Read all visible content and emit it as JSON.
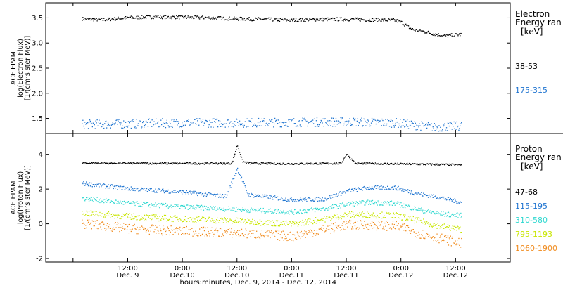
{
  "chart_data": [
    {
      "type": "scatter",
      "panel": "electron",
      "ylabel_lines": [
        "ACE EPAM",
        "log(Electron Flux)",
        "[1/(cm²s ster MeV)]"
      ],
      "legend_title_lines": [
        "Electron",
        "Energy ran"
      ],
      "legend_unit": "[keV]",
      "ylim": [
        1.2,
        3.8
      ],
      "yticks": [
        1.5,
        2.0,
        2.5,
        3.0,
        3.5
      ],
      "ytick_labels": [
        "1.5",
        "2.0",
        "2.5",
        "3.0",
        "3.5"
      ],
      "series": [
        {
          "name": "38-53",
          "color": "#000000",
          "x": [
            0.08,
            0.25,
            0.5,
            0.75,
            1.0,
            1.25,
            1.5,
            1.75,
            2.0,
            2.25,
            2.5,
            2.75,
            2.95,
            3.0,
            3.05,
            3.1,
            3.2,
            3.3,
            3.4,
            3.55
          ],
          "y": [
            3.49,
            3.47,
            3.51,
            3.53,
            3.52,
            3.51,
            3.49,
            3.48,
            3.46,
            3.48,
            3.48,
            3.47,
            3.46,
            3.42,
            3.35,
            3.28,
            3.24,
            3.19,
            3.15,
            3.18
          ],
          "spread": 0.035
        },
        {
          "name": "175-315",
          "color": "#1f74d0",
          "x": [
            0.08,
            0.5,
            1.0,
            1.5,
            2.0,
            2.5,
            2.95,
            3.1,
            3.3,
            3.55
          ],
          "y": [
            1.39,
            1.4,
            1.42,
            1.42,
            1.43,
            1.44,
            1.42,
            1.38,
            1.33,
            1.36
          ],
          "spread": 0.09
        }
      ]
    },
    {
      "type": "scatter",
      "panel": "proton",
      "ylabel_lines": [
        "ACE EPAM",
        "log(Proton Flux)",
        "[1/(cm²s ster MeV)]"
      ],
      "legend_title_lines": [
        "Proton",
        "Energy ran"
      ],
      "legend_unit": "[keV]",
      "ylim": [
        -2.2,
        5.2
      ],
      "yticks": [
        -2,
        0,
        2,
        4
      ],
      "ytick_labels": [
        "-2",
        "0",
        "2",
        "4"
      ],
      "series": [
        {
          "name": "47-68",
          "color": "#000000",
          "x": [
            0.08,
            0.8,
            1.45,
            1.5,
            1.55,
            1.62,
            2.0,
            2.45,
            2.5,
            2.58,
            3.0,
            3.55
          ],
          "y": [
            3.52,
            3.5,
            3.5,
            4.55,
            3.6,
            3.5,
            3.48,
            3.5,
            4.05,
            3.5,
            3.47,
            3.42
          ],
          "spread": 0.05
        },
        {
          "name": "115-195",
          "color": "#1f74d0",
          "x": [
            0.08,
            0.5,
            1.0,
            1.4,
            1.5,
            1.6,
            2.0,
            2.3,
            2.5,
            2.7,
            2.95,
            3.15,
            3.35,
            3.55
          ],
          "y": [
            2.35,
            2.05,
            1.85,
            1.6,
            3.2,
            1.7,
            1.4,
            1.45,
            1.9,
            2.1,
            2.1,
            1.75,
            1.55,
            1.25
          ],
          "spread": 0.12
        },
        {
          "name": "310-580",
          "color": "#2fd8d0",
          "x": [
            0.08,
            0.5,
            1.0,
            1.5,
            2.0,
            2.3,
            2.5,
            2.7,
            2.95,
            3.15,
            3.35,
            3.55
          ],
          "y": [
            1.5,
            1.2,
            1.0,
            0.85,
            0.7,
            0.9,
            1.15,
            1.25,
            1.2,
            0.85,
            0.6,
            0.5
          ],
          "spread": 0.14
        },
        {
          "name": "795-1193",
          "color": "#c8e600",
          "x": [
            0.08,
            0.5,
            1.0,
            1.5,
            2.0,
            2.3,
            2.5,
            2.7,
            2.95,
            3.15,
            3.35,
            3.55
          ],
          "y": [
            0.65,
            0.45,
            0.3,
            0.2,
            0.0,
            0.3,
            0.55,
            0.55,
            0.5,
            0.2,
            -0.1,
            -0.3
          ],
          "spread": 0.18
        },
        {
          "name": "1060-1900",
          "color": "#f08a1c",
          "x": [
            0.08,
            0.5,
            1.0,
            1.5,
            2.0,
            2.3,
            2.5,
            2.7,
            2.95,
            3.15,
            3.35,
            3.55
          ],
          "y": [
            0.05,
            -0.25,
            -0.4,
            -0.5,
            -0.7,
            -0.3,
            -0.05,
            -0.05,
            -0.1,
            -0.5,
            -0.8,
            -1.1
          ],
          "spread": 0.28
        }
      ]
    }
  ],
  "x_axis": {
    "xlim": [
      -0.25,
      4.0
    ],
    "ticks": [
      0.0,
      0.5,
      1.0,
      1.5,
      2.0,
      2.5,
      3.0,
      3.5,
      4.0
    ],
    "time_labels": [
      "",
      "12:00",
      "0:00",
      "12:00",
      "0:00",
      "12:00",
      "0:00",
      "12:00",
      ""
    ],
    "date_labels": [
      "",
      "Dec. 9",
      "Dec.10",
      "Dec.10",
      "Dec.11",
      "Dec.11",
      "Dec.12",
      "Dec.12",
      ""
    ],
    "axis_label": "hours:minutes, Dec. 9, 2014 - Dec. 12, 2014"
  }
}
